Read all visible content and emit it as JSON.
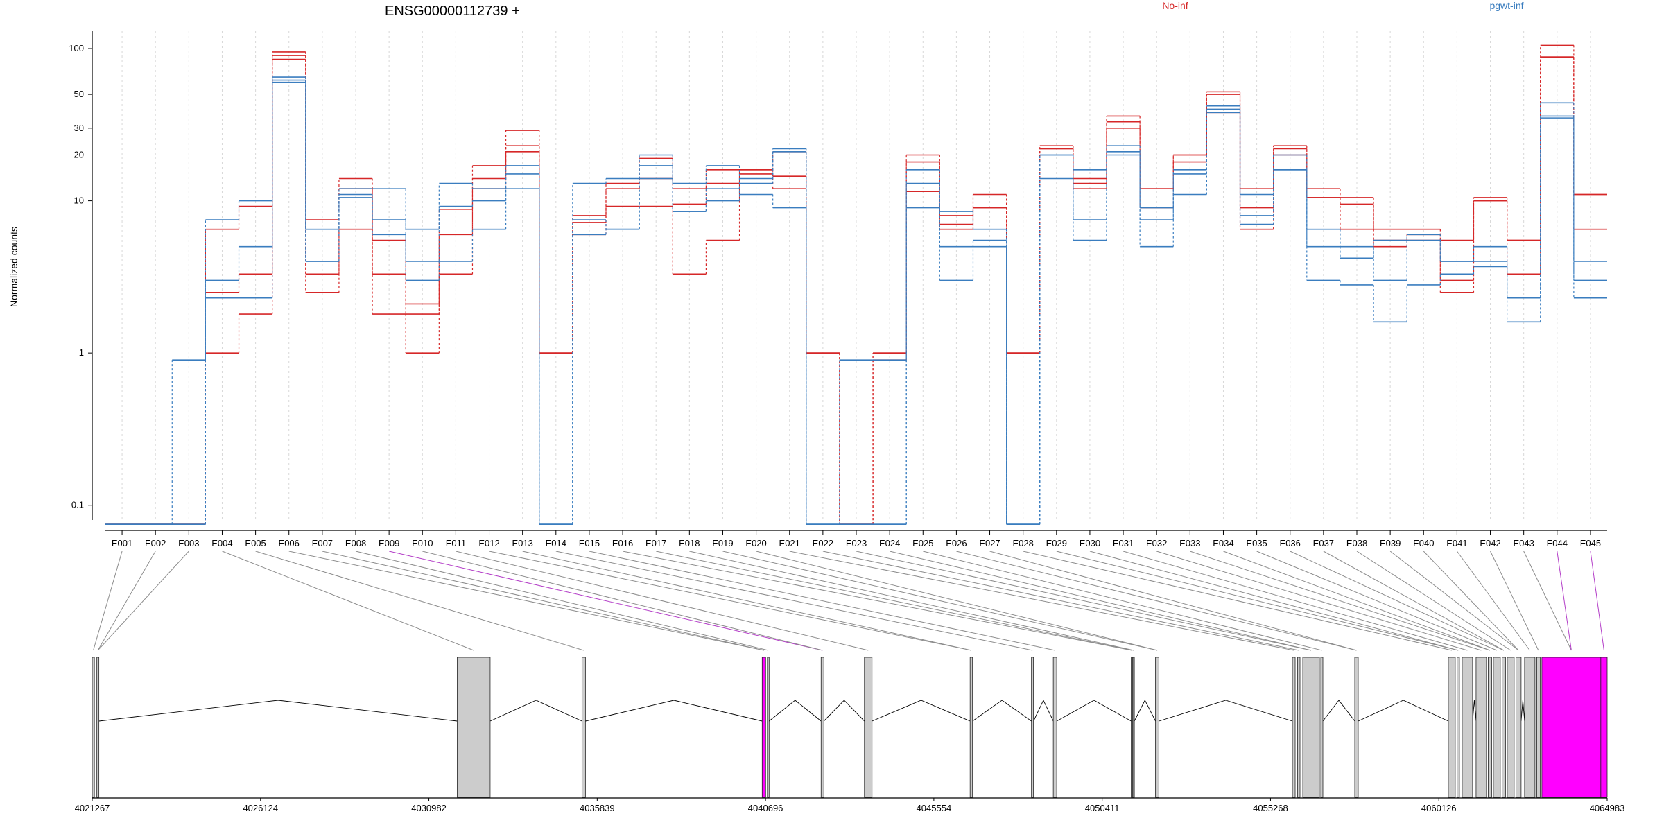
{
  "chart_data": {
    "type": "line",
    "title": "ENSG00000112739 +",
    "ylabel": "Normalized counts",
    "xlabel": "",
    "yscale": "log",
    "ylim": [
      0.08,
      130
    ],
    "yticks": [
      0.1,
      1,
      10,
      20,
      30,
      50,
      100
    ],
    "yticklabels": [
      "0.1",
      "1",
      "10",
      "20",
      "30",
      "50",
      "100"
    ],
    "categories": [
      "E001",
      "E002",
      "E003",
      "E004",
      "E005",
      "E006",
      "E007",
      "E008",
      "E009",
      "E010",
      "E011",
      "E012",
      "E013",
      "E014",
      "E015",
      "E016",
      "E017",
      "E018",
      "E019",
      "E020",
      "E021",
      "E022",
      "E023",
      "E024",
      "E025",
      "E026",
      "E027",
      "E028",
      "E029",
      "E030",
      "E031",
      "E032",
      "E033",
      "E034",
      "E035",
      "E036",
      "E037",
      "E038",
      "E039",
      "E040",
      "E041",
      "E042",
      "E043",
      "E044",
      "E045"
    ],
    "legend": [
      {
        "label": "No-inf",
        "color": "#d62728"
      },
      {
        "label": "pgwt-inf",
        "color": "#3a7dbf"
      }
    ],
    "highlight_color": "#ff00ff",
    "highlighted_exons": [
      "E009",
      "E044",
      "E045"
    ],
    "series": [
      {
        "group": "No-inf",
        "color": "#d62728",
        "values": [
          0.075,
          0.075,
          0.075,
          6.5,
          9.2,
          95,
          7.5,
          14,
          5.5,
          2.1,
          8.8,
          17,
          29,
          1,
          7.2,
          12,
          14,
          9.5,
          13,
          16,
          14.5,
          1,
          0.075,
          1,
          20,
          7,
          11,
          1,
          23,
          13,
          36,
          12,
          20,
          52,
          12,
          23,
          12,
          10.5,
          6.5,
          6.5,
          5.5,
          10.5,
          3.3,
          105,
          11
        ]
      },
      {
        "group": "No-inf",
        "color": "#d62728",
        "values": [
          0.075,
          0.075,
          0.075,
          2.5,
          3.3,
          90,
          3.3,
          12,
          3.3,
          1.8,
          6,
          14,
          23,
          1,
          8,
          13,
          19,
          12,
          16,
          15,
          12,
          1,
          0.075,
          0.9,
          18,
          8,
          9,
          1,
          22,
          12,
          33,
          12,
          18,
          50,
          9,
          22,
          10.5,
          9.5,
          5,
          5.5,
          2.5,
          10,
          5.5,
          88,
          11
        ]
      },
      {
        "group": "No-inf",
        "color": "#d62728",
        "values": [
          0.075,
          0.075,
          0.075,
          1,
          1.8,
          85,
          2.5,
          6.5,
          1.8,
          1,
          3.3,
          12,
          21,
          1,
          6,
          9.2,
          9.2,
          3.3,
          5.5,
          16,
          21,
          1,
          0.075,
          1,
          11.5,
          6.5,
          9,
          1,
          22,
          14,
          30,
          9,
          20,
          38,
          6.5,
          20,
          10.5,
          6.5,
          5.5,
          6,
          3,
          10,
          5.5,
          88,
          6.5
        ]
      },
      {
        "group": "pgwt-inf",
        "color": "#3a7dbf",
        "values": [
          0.075,
          0.075,
          0.9,
          7.5,
          10,
          60,
          6.5,
          12,
          12,
          6.5,
          13,
          12,
          12,
          0.075,
          13,
          14,
          20,
          13,
          17,
          11,
          9,
          0.075,
          0.9,
          0.9,
          13,
          8.5,
          6.5,
          0.075,
          20,
          16,
          23,
          9,
          11,
          42,
          11,
          16,
          5,
          4.2,
          5.5,
          5.5,
          4,
          5,
          1.6,
          44,
          4
        ]
      },
      {
        "group": "pgwt-inf",
        "color": "#3a7dbf",
        "values": [
          0.075,
          0.075,
          0.075,
          3,
          5,
          65,
          4,
          11,
          7.5,
          4,
          9.2,
          10,
          17,
          0.075,
          7.5,
          6.5,
          14,
          8.5,
          10,
          13,
          21,
          0.075,
          0.075,
          0.075,
          16,
          5,
          5,
          0.075,
          14,
          7.5,
          21,
          7.5,
          16,
          40,
          8,
          20,
          3,
          2.8,
          1.6,
          2.8,
          3.3,
          3.7,
          2.3,
          36,
          2.3
        ]
      },
      {
        "group": "pgwt-inf",
        "color": "#3a7dbf",
        "values": [
          0.075,
          0.075,
          0.075,
          2.3,
          2.3,
          62,
          4,
          10.5,
          6,
          3,
          4,
          6.5,
          15,
          0.075,
          6,
          6.5,
          17,
          8.5,
          12,
          14,
          22,
          0.075,
          0.075,
          0.075,
          9,
          3,
          5.5,
          0.075,
          20,
          5.5,
          20,
          5,
          15,
          38,
          7,
          16,
          6.5,
          5,
          3,
          6,
          4,
          4,
          2.3,
          35,
          3
        ]
      }
    ]
  },
  "gene_model": {
    "coord_labels": [
      "4021267",
      "4026124",
      "4030982",
      "4035839",
      "4040696",
      "4045554",
      "4050411",
      "4055268",
      "4060126",
      "4064983"
    ],
    "range": [
      4021267,
      4064983
    ]
  }
}
